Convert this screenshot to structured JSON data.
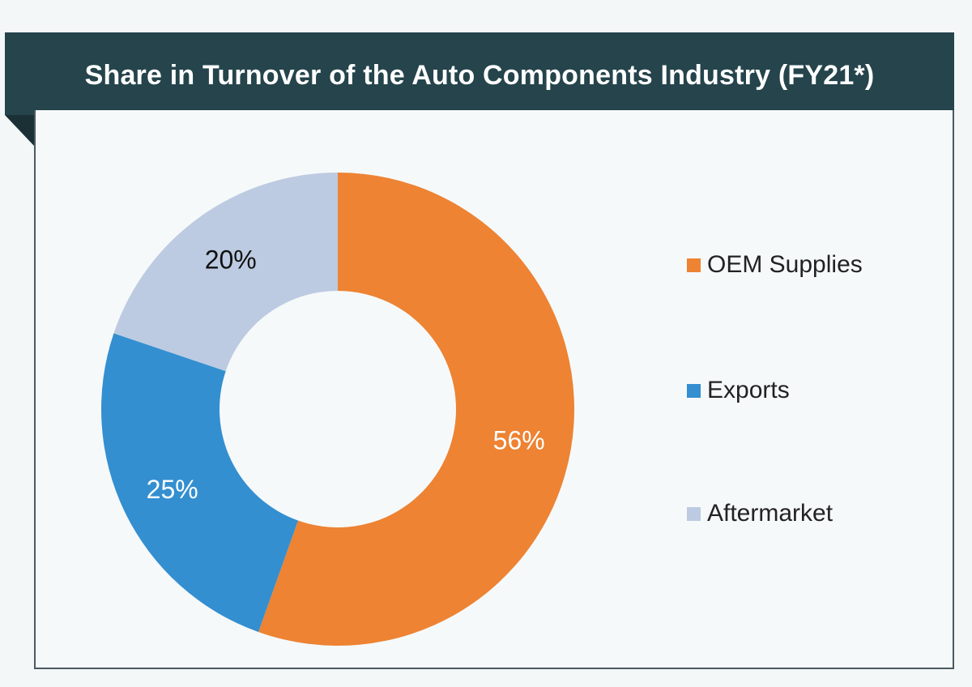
{
  "header": {
    "title": "Share in Turnover of the Auto Components Industry (FY21*)"
  },
  "colors": {
    "oem": "#ed8333",
    "exports": "#338fd0",
    "aftermarket": "#bccbe1",
    "header_bg": "#25444c"
  },
  "chart_data": {
    "type": "pie",
    "variant": "donut",
    "title": "Share in Turnover of the Auto Components Industry (FY21*)",
    "unit": "%",
    "legend_position": "right",
    "slices": [
      {
        "name": "OEM Supplies",
        "value": 56,
        "label": "56%",
        "color": "#ed8333",
        "label_color": "#ffffff"
      },
      {
        "name": "Exports",
        "value": 25,
        "label": "25%",
        "color": "#338fd0",
        "label_color": "#ffffff"
      },
      {
        "name": "Aftermarket",
        "value": 20,
        "label": "20%",
        "color": "#bccbe1",
        "label_color": "#111111"
      }
    ]
  }
}
